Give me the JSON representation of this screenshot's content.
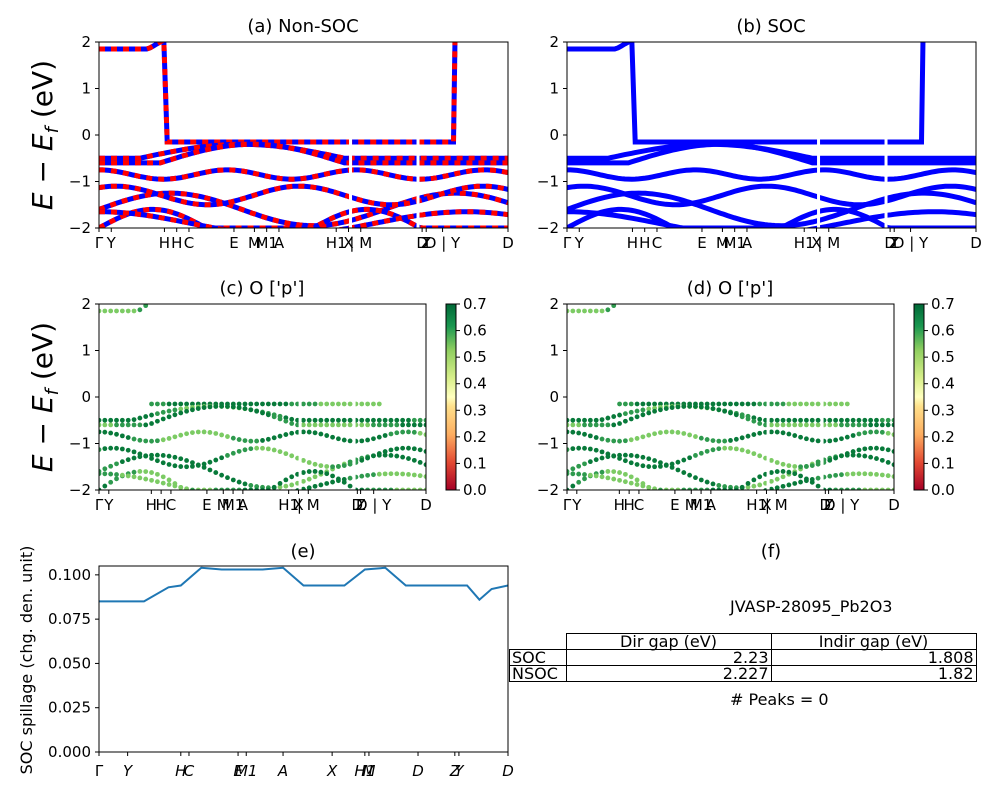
{
  "panels": {
    "a": {
      "title": "(a) Non-SOC"
    },
    "b": {
      "title": "(b) SOC"
    },
    "c": {
      "title": "(c)  O ['p']"
    },
    "d": {
      "title": "(d) O ['p']"
    },
    "e": {
      "title": "(e)"
    },
    "f": {
      "title": "(f)"
    }
  },
  "ylabel_band": "E − E_f (eV)",
  "ylabel_spillage": "SOC spillage (chg. den. unit)",
  "kpath_labels": [
    "Γ",
    "Y",
    "H",
    "H",
    "C",
    "E",
    "M",
    "M1",
    "A",
    "H1",
    "X",
    "| M",
    "D",
    "Z",
    "D | Y",
    "D"
  ],
  "colors": {
    "nonsoc_a": "#0000ff",
    "nonsoc_b": "#ff0000",
    "soc": "#0000ff",
    "spillage": "#1f77b4"
  },
  "colorbar": {
    "min": 0.0,
    "max": 0.7,
    "ticks": [
      "0.0",
      "0.1",
      "0.2",
      "0.3",
      "0.4",
      "0.5",
      "0.6",
      "0.7"
    ],
    "cmap": "RdYlGn"
  },
  "gap_table": {
    "headers": [
      "",
      "Dir gap (eV)",
      "Indir gap (eV)"
    ],
    "rows": [
      {
        "label": "SOC",
        "dir": "2.23",
        "indir": "1.808"
      },
      {
        "label": "NSOC",
        "dir": "2.227",
        "indir": "1.82"
      }
    ]
  },
  "material_id": "JVASP-28095_Pb2O3",
  "peaks_text": "# Peaks = 0",
  "chart_data": [
    {
      "type": "line",
      "panel": "a",
      "title": "(a) Non-SOC",
      "ylim": [
        -2,
        2
      ],
      "yticks": [
        "2",
        "1",
        "0",
        "−1",
        "−2"
      ],
      "xlabel_ticks": [
        "Γ",
        "Y",
        "H",
        "H",
        "C",
        "E",
        "M",
        "M1",
        "A",
        "H1",
        "X",
        "| M",
        "D",
        "Z",
        "D | Y",
        "D"
      ],
      "bands_at_gamma": [
        1.85,
        -0.5,
        -0.6,
        -0.85,
        -1.6,
        -2.0
      ],
      "series": [
        {
          "name": "",
          "note": "bands overlaid blue/red dashed"
        }
      ]
    },
    {
      "type": "line",
      "panel": "b",
      "title": "(b) SOC",
      "ylim": [
        -2,
        2
      ],
      "yticks": [
        "2",
        "1",
        "0",
        "−1",
        "−2"
      ],
      "bands_at_gamma": [
        1.85,
        -0.5,
        -0.6,
        -0.85,
        -1.6,
        -2.0
      ]
    },
    {
      "type": "scatter",
      "panel": "c",
      "title": "(c)  O ['p']",
      "ylim": [
        -2,
        2
      ],
      "colorbar_range": [
        0,
        0.7
      ]
    },
    {
      "type": "scatter",
      "panel": "d",
      "title": "(d) O ['p']",
      "ylim": [
        -2,
        2
      ],
      "colorbar_range": [
        0,
        0.7
      ]
    },
    {
      "type": "line",
      "panel": "e",
      "title": "(e)",
      "ylabel": "SOC spillage (chg. den. unit)",
      "ylim": [
        0,
        0.105
      ],
      "yticks": [
        "0.000",
        "0.025",
        "0.050",
        "0.075",
        "0.100"
      ],
      "xticks": [
        "Γ",
        "Y",
        "H",
        "C",
        "E",
        "M1",
        "A",
        "X",
        "H1",
        "M",
        "D",
        "Z",
        "Y",
        "D"
      ],
      "x": [
        0,
        0.07,
        0.11,
        0.17,
        0.2,
        0.25,
        0.3,
        0.4,
        0.45,
        0.5,
        0.56,
        0.6,
        0.65,
        0.7,
        0.75,
        0.8,
        0.9,
        0.93,
        0.96,
        1.0
      ],
      "values": [
        0.085,
        0.085,
        0.085,
        0.093,
        0.094,
        0.104,
        0.103,
        0.103,
        0.104,
        0.094,
        0.094,
        0.094,
        0.103,
        0.104,
        0.094,
        0.094,
        0.094,
        0.086,
        0.092,
        0.094
      ]
    }
  ]
}
